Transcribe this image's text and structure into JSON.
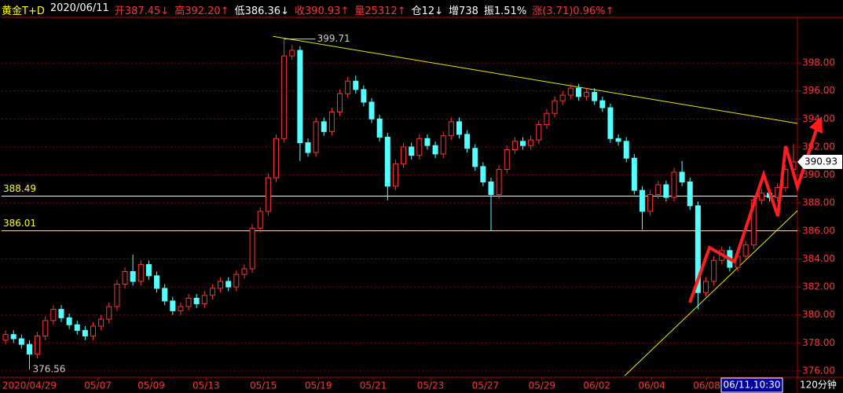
{
  "header": {
    "items": [
      {
        "text": "黄金T+D",
        "color": "#ffff00"
      },
      {
        "text": "2020/06/11",
        "color": "#ffffff"
      },
      {
        "text": "开387.45↓",
        "color": "#ff3232"
      },
      {
        "text": "高392.20↑",
        "color": "#ff3232"
      },
      {
        "text": "低386.36↓",
        "color": "#ffffff"
      },
      {
        "text": "收390.93↑",
        "color": "#ff3232"
      },
      {
        "text": "量25312↑",
        "color": "#ff3232"
      },
      {
        "text": "仓12↓",
        "color": "#ffffff"
      },
      {
        "text": "增738",
        "color": "#ffffff"
      },
      {
        "text": "振1.51%",
        "color": "#ffffff"
      },
      {
        "text": "涨(3.71)0.96%↑",
        "color": "#ff3232"
      }
    ]
  },
  "chart_data": {
    "type": "candlestick",
    "up_color": "#ff3232",
    "down_color": "#54ffff",
    "grid": true,
    "open": [
      378.2,
      378.6,
      378.3,
      377.9,
      377.2,
      378.5,
      379.6,
      380.4,
      379.8,
      379.3,
      378.9,
      378.5,
      379.2,
      379.7,
      380.6,
      382.2,
      383.1,
      382.4,
      383.6,
      382.8,
      381.9,
      381.0,
      380.3,
      380.6,
      381.2,
      380.8,
      381.4,
      381.9,
      382.4,
      382.0,
      382.9,
      383.3,
      386.2,
      387.4,
      389.8,
      392.6,
      398.5,
      398.9,
      392.3,
      391.6,
      393.8,
      393.1,
      394.5,
      395.8,
      396.7,
      396.1,
      395.2,
      394.0,
      392.7,
      389.2,
      390.8,
      392.0,
      391.4,
      392.6,
      392.1,
      391.5,
      392.8,
      393.8,
      392.9,
      391.9,
      390.6,
      389.5,
      388.6,
      390.4,
      391.8,
      392.4,
      392.1,
      392.5,
      393.6,
      394.4,
      395.3,
      395.7,
      396.2,
      395.6,
      395.9,
      395.3,
      394.8,
      392.6,
      392.4,
      391.2,
      388.9,
      387.4,
      388.6,
      389.3,
      388.4,
      390.2,
      389.5,
      387.8,
      381.6,
      382.4,
      383.9,
      384.6,
      383.4,
      384.2,
      385.0,
      388.2,
      388.7,
      388.4,
      389.1,
      390.4
    ],
    "high": [
      378.9,
      378.9,
      378.6,
      378.2,
      378.8,
      379.9,
      380.7,
      380.7,
      380.1,
      379.6,
      379.2,
      379.5,
      380.0,
      380.9,
      382.5,
      383.4,
      384.3,
      383.9,
      383.9,
      383.1,
      382.2,
      381.3,
      380.9,
      381.5,
      381.5,
      381.7,
      382.2,
      382.7,
      382.7,
      383.2,
      383.6,
      386.5,
      387.7,
      390.1,
      392.9,
      399.71,
      399.3,
      399.2,
      392.6,
      394.1,
      394.1,
      394.8,
      396.1,
      397.0,
      397.1,
      396.4,
      395.5,
      394.3,
      393.0,
      391.1,
      392.3,
      392.3,
      392.9,
      392.9,
      392.4,
      393.1,
      394.1,
      394.1,
      393.2,
      392.2,
      390.9,
      389.8,
      390.7,
      392.1,
      392.7,
      392.7,
      392.8,
      393.9,
      394.7,
      395.6,
      396.0,
      396.5,
      396.5,
      396.2,
      396.2,
      395.6,
      395.1,
      392.9,
      392.7,
      391.5,
      389.2,
      388.9,
      389.6,
      389.6,
      390.5,
      391.0,
      389.8,
      388.1,
      382.7,
      384.2,
      384.9,
      384.9,
      384.5,
      385.3,
      388.5,
      389.0,
      389.0,
      389.4,
      390.7,
      392.2
    ],
    "low": [
      377.9,
      378.0,
      377.6,
      376.56,
      376.9,
      378.2,
      379.3,
      379.5,
      379.0,
      378.6,
      378.2,
      378.2,
      378.9,
      379.4,
      380.3,
      381.9,
      382.1,
      382.1,
      382.5,
      381.6,
      380.7,
      380.0,
      380.0,
      380.3,
      380.5,
      380.5,
      381.1,
      381.6,
      381.7,
      381.7,
      382.6,
      383.0,
      385.9,
      387.1,
      389.5,
      392.3,
      398.2,
      391.0,
      391.3,
      391.3,
      392.8,
      392.8,
      394.2,
      395.5,
      395.8,
      394.9,
      393.7,
      392.4,
      388.2,
      388.9,
      390.5,
      391.1,
      391.1,
      391.8,
      391.2,
      391.2,
      392.5,
      392.6,
      391.6,
      390.3,
      389.2,
      386.0,
      388.3,
      390.1,
      391.5,
      391.8,
      391.8,
      392.2,
      393.3,
      394.1,
      395.0,
      395.4,
      395.3,
      395.3,
      395.0,
      394.5,
      392.3,
      392.1,
      390.9,
      388.6,
      386.1,
      387.1,
      388.3,
      388.1,
      388.1,
      389.2,
      387.5,
      380.4,
      381.3,
      382.1,
      383.6,
      383.1,
      383.1,
      383.9,
      384.7,
      387.9,
      388.1,
      388.1,
      388.8,
      390.1
    ],
    "close": [
      378.6,
      378.3,
      377.9,
      377.2,
      378.5,
      379.6,
      380.4,
      379.8,
      379.3,
      378.9,
      378.5,
      379.2,
      379.7,
      380.6,
      382.2,
      383.1,
      382.4,
      383.6,
      382.8,
      381.9,
      381.0,
      380.3,
      380.6,
      381.2,
      380.8,
      381.4,
      381.9,
      382.4,
      382.0,
      382.9,
      383.3,
      386.2,
      387.4,
      389.8,
      392.6,
      398.5,
      398.9,
      392.3,
      391.6,
      393.8,
      393.1,
      394.5,
      395.8,
      396.7,
      396.1,
      395.2,
      394.0,
      392.7,
      389.2,
      390.8,
      392.0,
      391.4,
      392.6,
      392.1,
      391.5,
      392.8,
      393.8,
      392.9,
      391.9,
      390.6,
      389.5,
      388.6,
      390.4,
      391.8,
      392.4,
      392.1,
      392.5,
      393.6,
      394.4,
      395.3,
      395.7,
      396.2,
      395.6,
      395.9,
      395.3,
      394.8,
      392.6,
      392.4,
      391.2,
      388.9,
      387.4,
      388.6,
      389.3,
      388.4,
      390.2,
      389.5,
      387.8,
      381.6,
      382.4,
      383.9,
      384.6,
      383.4,
      384.2,
      385.0,
      388.2,
      388.7,
      388.4,
      389.1,
      390.4,
      390.93
    ],
    "xlim": [
      0,
      100
    ],
    "xticks": [
      {
        "value": 3.5,
        "label": "2020/04/29"
      },
      {
        "value": 12.1,
        "label": "05/07"
      },
      {
        "value": 18.8,
        "label": "05/09"
      },
      {
        "value": 25.7,
        "label": "05/13"
      },
      {
        "value": 32.9,
        "label": "05/15"
      },
      {
        "value": 39.8,
        "label": "05/19"
      },
      {
        "value": 46.7,
        "label": "05/21"
      },
      {
        "value": 53.9,
        "label": "05/23"
      },
      {
        "value": 60.8,
        "label": "05/27"
      },
      {
        "value": 67.9,
        "label": "05/29"
      },
      {
        "value": 74.8,
        "label": "06/02"
      },
      {
        "value": 81.7,
        "label": "06/04"
      },
      {
        "value": 88.6,
        "label": "06/08"
      }
    ],
    "ylim": [
      375.55,
      401.26
    ],
    "yticks": [
      {
        "value": 376,
        "label": "376.00"
      },
      {
        "value": 378,
        "label": "378.00"
      },
      {
        "value": 380,
        "label": "380.00"
      },
      {
        "value": 382,
        "label": "382.00"
      },
      {
        "value": 384,
        "label": "384.00"
      },
      {
        "value": 386,
        "label": "386.00"
      },
      {
        "value": 388,
        "label": "388.00"
      },
      {
        "value": 390,
        "label": "390.00"
      },
      {
        "value": 392,
        "label": "392.00"
      },
      {
        "value": 394,
        "label": "394.00"
      },
      {
        "value": 396,
        "label": "396.00"
      },
      {
        "value": 398,
        "label": "398.00"
      }
    ],
    "levels": [
      {
        "value": 388.49,
        "color": "#ffffa0"
      },
      {
        "value": 386.01,
        "color": "#ffff00"
      }
    ],
    "trend_lines": [
      {
        "x": [
          34.1,
          100
        ],
        "y": [
          399.9,
          393.68
        ],
        "color": "#e8e800"
      },
      {
        "x": [
          78.3,
          100
        ],
        "y": [
          375.66,
          387.45
        ],
        "color": "#e8e800"
      }
    ],
    "cursor_label": "06/11,10:30",
    "period": "120分钟"
  }
}
